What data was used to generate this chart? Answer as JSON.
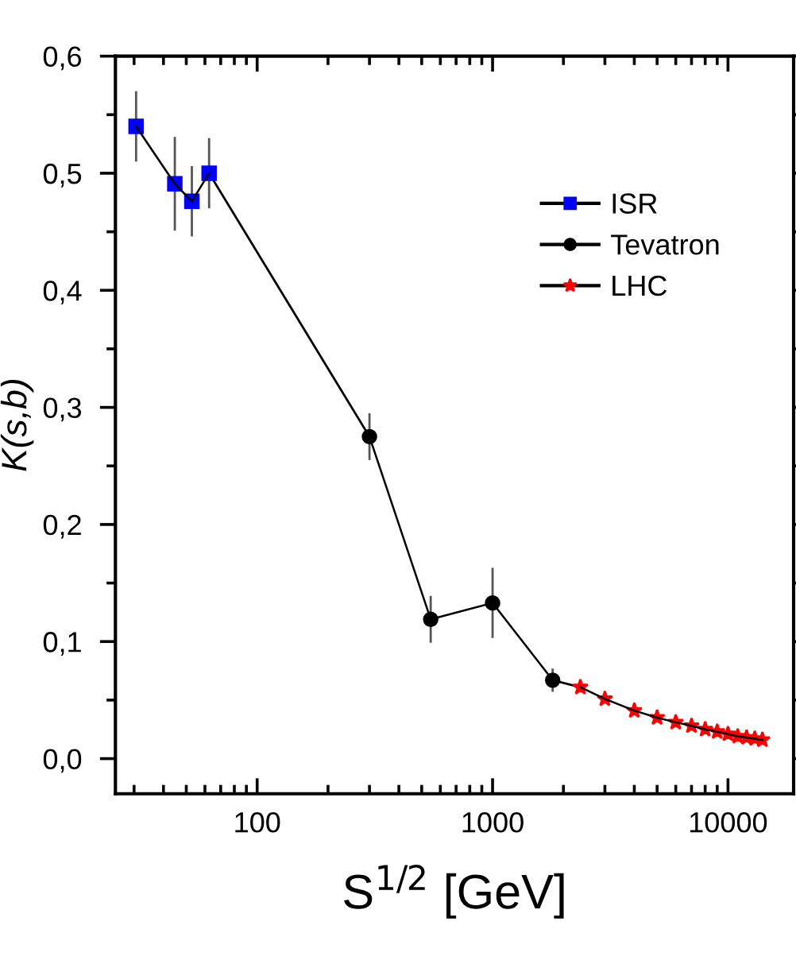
{
  "chart_data": {
    "type": "line",
    "xlabel": "S$^{1/2}$ [GeV]",
    "ylabel": "K(s,b)",
    "log": "x",
    "xlim": [
      25,
      19000
    ],
    "ylim": [
      -0.03,
      0.6
    ],
    "xticks": [
      {
        "value": 30,
        "label": null
      },
      {
        "value": 40,
        "label": null
      },
      {
        "value": 50,
        "label": null
      },
      {
        "value": 60,
        "label": null
      },
      {
        "value": 70,
        "label": null
      },
      {
        "value": 80,
        "label": null
      },
      {
        "value": 90,
        "label": null
      },
      100,
      {
        "value": 200,
        "label": null
      },
      {
        "value": 300,
        "label": null
      },
      {
        "value": 400,
        "label": null
      },
      {
        "value": 500,
        "label": null
      },
      {
        "value": 600,
        "label": null
      },
      {
        "value": 700,
        "label": null
      },
      {
        "value": 800,
        "label": null
      },
      {
        "value": 900,
        "label": null
      },
      1000,
      {
        "value": 2000,
        "label": null
      },
      {
        "value": 3000,
        "label": null
      },
      {
        "value": 4000,
        "label": null
      },
      {
        "value": 5000,
        "label": null
      },
      {
        "value": 6000,
        "label": null
      },
      {
        "value": 7000,
        "label": null
      },
      {
        "value": 8000,
        "label": null
      },
      {
        "value": 9000,
        "label": null
      },
      10000
    ],
    "yticks": [
      {
        "value": 0.0,
        "label": "0,0"
      },
      {
        "value": 0.05,
        "label": null
      },
      {
        "value": 0.1,
        "label": "0,1"
      },
      {
        "value": 0.15,
        "label": null
      },
      {
        "value": 0.2,
        "label": "0,2"
      },
      {
        "value": 0.25,
        "label": null
      },
      {
        "value": 0.3,
        "label": "0,3"
      },
      {
        "value": 0.35,
        "label": null
      },
      {
        "value": 0.4,
        "label": "0,4"
      },
      {
        "value": 0.45,
        "label": null
      },
      {
        "value": 0.5,
        "label": "0,5"
      },
      {
        "value": 0.55,
        "label": null
      },
      {
        "value": 0.6,
        "label": "0,6"
      }
    ],
    "grid": false,
    "legend": "top right",
    "line_style": "solid",
    "series": [
      {
        "name": "ISR",
        "color": "#0000ff",
        "marker": "square",
        "x": [
          30.6,
          44.7,
          52.8,
          62.5
        ],
        "values": [
          0.54,
          0.491,
          0.476,
          0.5
        ],
        "errors": [
          0.03,
          0.04,
          0.03,
          0.03
        ]
      },
      {
        "name": "Tevatron",
        "color": "#000000",
        "marker": "circle",
        "x": [
          300,
          546,
          1000,
          1800
        ],
        "values": [
          0.275,
          0.119,
          0.133,
          0.067
        ],
        "errors": [
          0.02,
          0.02,
          0.03,
          0.01
        ]
      },
      {
        "name": "LHC",
        "color": "#ff0000",
        "marker": "star",
        "x": [
          2360,
          3000,
          4000,
          5000,
          6000,
          7000,
          8000,
          9000,
          10000,
          11000,
          12000,
          13000,
          14000
        ],
        "values": [
          0.061,
          0.051,
          0.041,
          0.035,
          0.031,
          0.028,
          0.025,
          0.023,
          0.021,
          0.019,
          0.018,
          0.017,
          0.016
        ]
      }
    ]
  }
}
